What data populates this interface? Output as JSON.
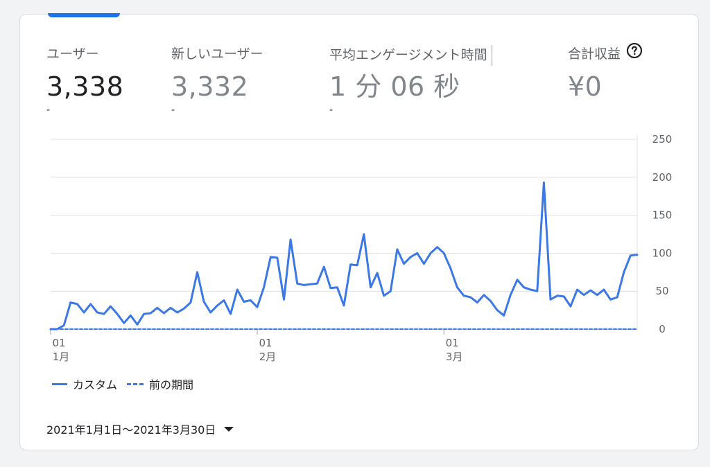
{
  "metrics": [
    {
      "label": "ユーザー",
      "value": "3,338",
      "delta": "-"
    },
    {
      "label": "新しいユーザー",
      "value": "3,332",
      "delta": "-"
    },
    {
      "label": "平均エンゲージメント時間",
      "value": "1 分 06 秒",
      "delta": "-"
    },
    {
      "label": "合計収益",
      "value": "¥0",
      "delta": ""
    }
  ],
  "legend": {
    "current": "カスタム",
    "previous": "前の期間"
  },
  "date_range": "2021年1月1日〜2021年3月30日",
  "colors": {
    "accent": "#1a73e8",
    "series": "#3b78e7",
    "grid": "#e0e0e0"
  },
  "icons": {
    "help": "question-circle-icon",
    "dropdown": "caret-down-icon"
  },
  "chart_data": {
    "type": "line",
    "title": "",
    "xlabel": "",
    "ylabel": "",
    "ylim": [
      0,
      250
    ],
    "yticks": [
      0,
      50,
      100,
      150,
      200,
      250
    ],
    "y_axis_side": "right",
    "x_tick_labels": [
      {
        "index": 0,
        "day": "01",
        "month": "1月"
      },
      {
        "index": 31,
        "day": "01",
        "month": "2月"
      },
      {
        "index": 59,
        "day": "01",
        "month": "3月"
      }
    ],
    "grid": true,
    "legend_position": "bottom-left",
    "series": [
      {
        "name": "カスタム",
        "style": "solid",
        "values": [
          0,
          0,
          5,
          35,
          33,
          22,
          33,
          22,
          20,
          30,
          20,
          8,
          18,
          6,
          20,
          21,
          28,
          21,
          28,
          22,
          27,
          35,
          75,
          36,
          22,
          31,
          38,
          20,
          52,
          36,
          38,
          29,
          55,
          95,
          94,
          39,
          118,
          60,
          58,
          59,
          60,
          82,
          54,
          55,
          31,
          85,
          84,
          125,
          55,
          74,
          44,
          50,
          105,
          86,
          95,
          100,
          86,
          100,
          108,
          100,
          80,
          55,
          44,
          42,
          35,
          45,
          37,
          25,
          18,
          45,
          65,
          55,
          52,
          50,
          193,
          39,
          44,
          43,
          30,
          52,
          45,
          51,
          45,
          52,
          39,
          42,
          75,
          97,
          98
        ]
      },
      {
        "name": "前の期間",
        "style": "dashed",
        "values": [
          0,
          0,
          0,
          0,
          0,
          0,
          0,
          0,
          0,
          0,
          0,
          0,
          0,
          0,
          0,
          0,
          0,
          0,
          0,
          0,
          0,
          0,
          0,
          0,
          0,
          0,
          0,
          0,
          0,
          0,
          0,
          0,
          0,
          0,
          0,
          0,
          0,
          0,
          0,
          0,
          0,
          0,
          0,
          0,
          0,
          0,
          0,
          0,
          0,
          0,
          0,
          0,
          0,
          0,
          0,
          0,
          0,
          0,
          0,
          0,
          0,
          0,
          0,
          0,
          0,
          0,
          0,
          0,
          0,
          0,
          0,
          0,
          0,
          0,
          0,
          0,
          0,
          0,
          0,
          0,
          0,
          0,
          0,
          0,
          0,
          0,
          0,
          0,
          0
        ]
      }
    ]
  }
}
